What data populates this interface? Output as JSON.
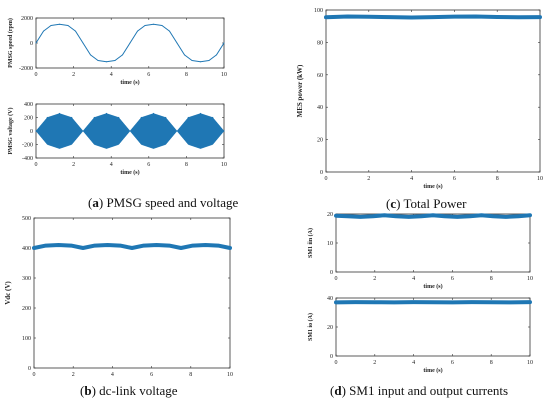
{
  "figure": {
    "captions": [
      {
        "letter": "a",
        "text": "PMSG speed and voltage"
      },
      {
        "letter": "b",
        "text": "dc-link voltage"
      },
      {
        "letter": "c",
        "text": "Total Power"
      },
      {
        "letter": "d",
        "text": "SM1 input and output currents"
      }
    ]
  },
  "chart_data": [
    {
      "id": "pmsg-speed",
      "type": "line",
      "panel": "a",
      "xlabel": "time (s)",
      "ylabel": "PMSG speed (rpm)",
      "xlim": [
        0,
        10
      ],
      "ylim": [
        -2000,
        2000
      ],
      "xticks": [
        0,
        2,
        4,
        6,
        8,
        10
      ],
      "yticks": [
        -2000,
        0,
        2000
      ],
      "color": "#1f77b4",
      "series": [
        {
          "x": [
            0,
            0.4,
            0.8,
            1.25,
            1.7,
            2.1,
            2.5,
            2.9,
            3.3,
            3.75,
            4.2,
            4.6,
            5.0,
            5.4,
            5.8,
            6.25,
            6.7,
            7.1,
            7.5,
            7.9,
            8.3,
            8.75,
            9.2,
            9.6,
            10.0
          ],
          "y": [
            0,
            950,
            1400,
            1500,
            1400,
            950,
            0,
            -950,
            -1400,
            -1500,
            -1400,
            -950,
            0,
            950,
            1400,
            1500,
            1400,
            950,
            0,
            -950,
            -1400,
            -1500,
            -1400,
            -950,
            0
          ]
        }
      ]
    },
    {
      "id": "pmsg-voltage",
      "type": "area",
      "panel": "a",
      "xlabel": "time (s)",
      "ylabel": "PMSG voltage (V)",
      "xlim": [
        0,
        10
      ],
      "ylim": [
        -400,
        400
      ],
      "xticks": [
        0,
        2,
        4,
        6,
        8,
        10
      ],
      "yticks": [
        -400,
        -200,
        0,
        200,
        400
      ],
      "color": "#1f77b4",
      "series": [
        {
          "x": [
            0,
            0.6,
            1.25,
            1.9,
            2.5,
            3.1,
            3.75,
            4.4,
            5.0,
            5.6,
            6.25,
            6.9,
            7.5,
            8.1,
            8.75,
            9.4,
            10.0
          ],
          "envelope": [
            0,
            200,
            260,
            200,
            0,
            200,
            260,
            200,
            0,
            200,
            260,
            200,
            0,
            200,
            260,
            200,
            0
          ]
        }
      ]
    },
    {
      "id": "dc-link-voltage",
      "type": "line",
      "panel": "b",
      "xlabel": "",
      "ylabel": "Vdc (V)",
      "xlim": [
        0,
        10
      ],
      "ylim": [
        0,
        500
      ],
      "xticks": [
        0,
        2,
        4,
        6,
        8,
        10
      ],
      "yticks": [
        0,
        100,
        200,
        300,
        400,
        500
      ],
      "color": "#1f77b4",
      "series": [
        {
          "x": [
            0,
            0.6,
            1.25,
            1.9,
            2.5,
            3.1,
            3.75,
            4.4,
            5.0,
            5.6,
            6.25,
            6.9,
            7.5,
            8.1,
            8.75,
            9.4,
            10.0
          ],
          "y": [
            400,
            408,
            410,
            408,
            400,
            408,
            410,
            408,
            400,
            408,
            410,
            408,
            400,
            408,
            410,
            408,
            400
          ]
        }
      ]
    },
    {
      "id": "total-power",
      "type": "line",
      "panel": "c",
      "xlabel": "time (s)",
      "ylabel": "MES power (kW)",
      "xlim": [
        0,
        10
      ],
      "ylim": [
        0,
        100
      ],
      "xticks": [
        0,
        2,
        4,
        6,
        8,
        10
      ],
      "yticks": [
        0,
        20,
        40,
        60,
        80,
        100
      ],
      "color": "#1f77b4",
      "series": [
        {
          "x": [
            0,
            1,
            2,
            3,
            4,
            5,
            6,
            7,
            8,
            9,
            10
          ],
          "y": [
            95.5,
            96,
            95.8,
            95.6,
            95.4,
            95.6,
            95.9,
            96,
            95.7,
            95.5,
            95.6
          ]
        }
      ]
    },
    {
      "id": "sm1-input-current",
      "type": "line",
      "panel": "d",
      "xlabel": "time (s)",
      "ylabel": "SM1 iin (A)",
      "xlim": [
        0,
        10
      ],
      "ylim": [
        0,
        20
      ],
      "xticks": [
        0,
        2,
        4,
        6,
        8,
        10
      ],
      "yticks": [
        0,
        10,
        20
      ],
      "color": "#1f77b4",
      "series": [
        {
          "x": [
            0,
            0.6,
            1.25,
            1.9,
            2.5,
            3.1,
            3.75,
            4.4,
            5.0,
            5.6,
            6.25,
            6.9,
            7.5,
            8.1,
            8.75,
            9.4,
            10.0
          ],
          "y": [
            19.4,
            19.2,
            19.0,
            19.2,
            19.6,
            19.2,
            19.0,
            19.2,
            19.6,
            19.2,
            19.0,
            19.2,
            19.6,
            19.2,
            19.0,
            19.2,
            19.6
          ]
        }
      ]
    },
    {
      "id": "sm1-output-current",
      "type": "line",
      "panel": "d",
      "xlabel": "time (s)",
      "ylabel": "SM1 io (A)",
      "xlim": [
        0,
        10
      ],
      "ylim": [
        0,
        40
      ],
      "xticks": [
        0,
        2,
        4,
        6,
        8,
        10
      ],
      "yticks": [
        0,
        20,
        40
      ],
      "color": "#1f77b4",
      "series": [
        {
          "x": [
            0,
            1,
            2,
            3,
            4,
            5,
            6,
            7,
            8,
            9,
            10
          ],
          "y": [
            37,
            37.2,
            37.1,
            37,
            37.2,
            37.1,
            37,
            37.2,
            37.1,
            37,
            37.2
          ]
        }
      ]
    }
  ]
}
